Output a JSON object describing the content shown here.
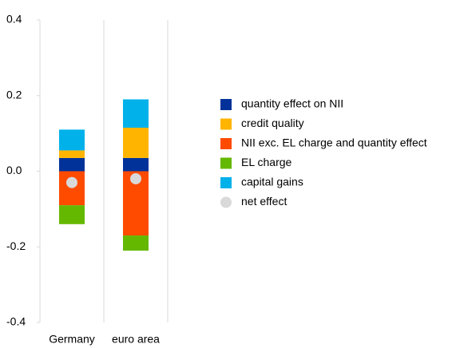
{
  "chart_data": {
    "type": "bar",
    "stacked": true,
    "categories": [
      "Germany",
      "euro area"
    ],
    "series": [
      {
        "name": "quantity effect on NII",
        "color": "#003299",
        "values": [
          0.035,
          0.035
        ]
      },
      {
        "name": "credit quality",
        "color": "#ffb400",
        "values": [
          0.02,
          0.08
        ]
      },
      {
        "name": "NII exc. EL charge and quantity effect",
        "color": "#ff4b00",
        "values": [
          -0.09,
          -0.17
        ]
      },
      {
        "name": "EL charge",
        "color": "#65b800",
        "values": [
          -0.05,
          -0.04
        ]
      },
      {
        "name": "capital gains",
        "color": "#00b1ea",
        "values": [
          0.055,
          0.075
        ]
      },
      {
        "name": "net effect",
        "color": "#d9d9d9",
        "type": "scatter",
        "values": [
          -0.03,
          -0.02
        ]
      }
    ],
    "ylim": [
      -0.4,
      0.4
    ],
    "yticks": [
      -0.4,
      -0.2,
      {
        "value": 0,
        "label": "0.0"
      },
      0.2,
      0.4
    ],
    "legend": "right"
  }
}
